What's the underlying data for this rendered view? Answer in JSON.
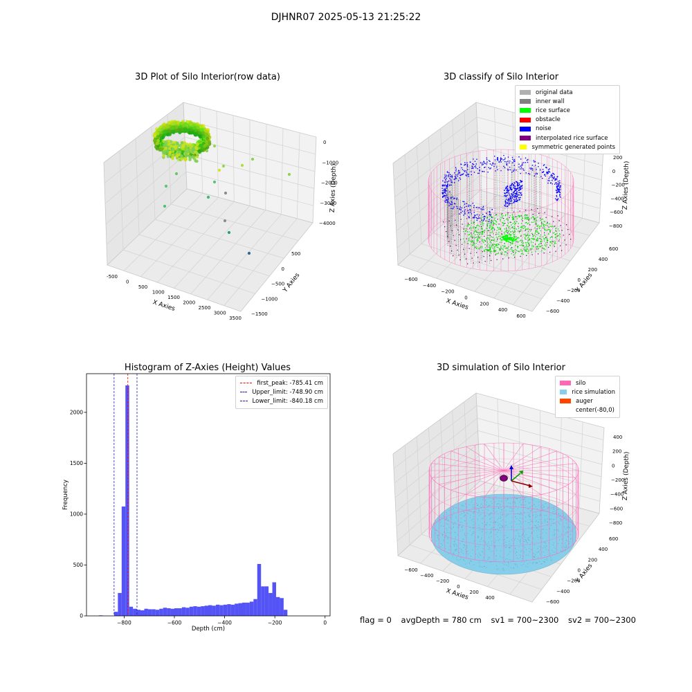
{
  "suptitle": "DJHNR07 2025-05-13 21:25:22",
  "status": {
    "flag": "flag = 0",
    "avg_depth": "avgDepth = 780 cm",
    "sv1": "sv1 = 700~2300",
    "sv2": "sv2 = 700~2300"
  },
  "colors": {
    "hist_bar": "#4b4bf5",
    "first_peak": "#ff0000",
    "limit_lines": "#1a1acc",
    "silo": "#ff69b4",
    "rice_simulation": "#87ceeb",
    "auger": "#ff4500"
  },
  "panels": {
    "raw": {
      "title": "3D Plot of Silo Interior(row data)",
      "xlabel": "X Axies",
      "ylabel": "Y Axies",
      "zlabel": "Z Axies (Depth)",
      "xticks": [
        "-500",
        "0",
        "500",
        "1000",
        "1500",
        "2000",
        "2500",
        "3000",
        "3500"
      ],
      "yticks": [
        "500",
        "0",
        "−500",
        "−1000",
        "−1500"
      ],
      "zticks": [
        "0",
        "−1000",
        "−2000",
        "−3000",
        "−4000"
      ]
    },
    "classify": {
      "title": "3D classify of Silo Interior",
      "xlabel": "X Axies",
      "ylabel": "Y Axies",
      "zlabel": "Z Axies (Depth)",
      "xticks": [
        "−600",
        "−400",
        "−200",
        "0",
        "200",
        "400",
        "600"
      ],
      "yticks": [
        "600",
        "400",
        "200",
        "0",
        "−200",
        "−400",
        "−600"
      ],
      "zticks": [
        "200",
        "0",
        "−200",
        "−400",
        "−600",
        "−800"
      ],
      "legend": [
        {
          "label": "original data",
          "color": "#b0b0b0"
        },
        {
          "label": "inner wall",
          "color": "#808080"
        },
        {
          "label": "rice surface",
          "color": "#00ff00"
        },
        {
          "label": "obstacle",
          "color": "#ff0000"
        },
        {
          "label": "noise",
          "color": "#0000ff"
        },
        {
          "label": "interpolated rice surface",
          "color": "#800080"
        },
        {
          "label": "symmetric generated points",
          "color": "#ffff00"
        }
      ]
    },
    "simulation": {
      "title": "3D simulation of Silo Interior",
      "xlabel": "X Axies",
      "ylabel": "Y Axies",
      "zlabel": "Z Axies (Depth)",
      "xticks": [
        "−600",
        "−400",
        "−200",
        "0",
        "200",
        "400"
      ],
      "yticks": [
        "600",
        "400",
        "200",
        "0",
        "−200",
        "−400",
        "−600"
      ],
      "zticks": [
        "400",
        "200",
        "0",
        "−200",
        "−400",
        "−600",
        "−800"
      ],
      "legend": [
        {
          "label": "silo",
          "color": "#ff69b4"
        },
        {
          "label": "rice simulation",
          "color": "#87ceeb"
        },
        {
          "label": "auger",
          "color": "#ff4500"
        },
        {
          "label": "center(-80,0)",
          "color": "#ffffff"
        }
      ]
    }
  },
  "chart_data": [
    {
      "type": "scatter",
      "title": "3D Plot of Silo Interior(row data)",
      "xlabel": "X Axies",
      "ylabel": "Y Axies",
      "zlabel": "Z Axies (Depth)",
      "xlim": [
        -600,
        3600
      ],
      "ylim": [
        -1500,
        700
      ],
      "zlim": [
        -4500,
        200
      ]
    },
    {
      "type": "scatter",
      "title": "3D classify of Silo Interior",
      "xlabel": "X Axies",
      "ylabel": "Y Axies",
      "zlabel": "Z Axies (Depth)",
      "xlim": [
        -700,
        700
      ],
      "ylim": [
        -700,
        700
      ],
      "zlim": [
        -900,
        300
      ],
      "series": [
        {
          "name": "original data"
        },
        {
          "name": "inner wall"
        },
        {
          "name": "rice surface"
        },
        {
          "name": "obstacle"
        },
        {
          "name": "noise"
        },
        {
          "name": "interpolated rice surface"
        },
        {
          "name": "symmetric generated points"
        }
      ]
    },
    {
      "type": "bar",
      "title": "Histogram of Z-Axies (Height) Values",
      "xlabel": "Depth (cm)",
      "ylabel": "Frequency",
      "xlim": [
        -950,
        20
      ],
      "ylim": [
        0,
        2380
      ],
      "xticks": [
        -800,
        -600,
        -400,
        -200,
        0
      ],
      "yticks": [
        0,
        500,
        1000,
        1500,
        2000
      ],
      "bin_width": 15,
      "bins": [
        {
          "x": -900,
          "count": 5
        },
        {
          "x": -840,
          "count": 40
        },
        {
          "x": -825,
          "count": 225
        },
        {
          "x": -810,
          "count": 1075
        },
        {
          "x": -795,
          "count": 2265
        },
        {
          "x": -780,
          "count": 90
        },
        {
          "x": -765,
          "count": 70
        },
        {
          "x": -750,
          "count": 60
        },
        {
          "x": -735,
          "count": 55
        },
        {
          "x": -720,
          "count": 70
        },
        {
          "x": -705,
          "count": 65
        },
        {
          "x": -690,
          "count": 65
        },
        {
          "x": -675,
          "count": 60
        },
        {
          "x": -660,
          "count": 70
        },
        {
          "x": -645,
          "count": 80
        },
        {
          "x": -630,
          "count": 75
        },
        {
          "x": -615,
          "count": 70
        },
        {
          "x": -600,
          "count": 75
        },
        {
          "x": -585,
          "count": 75
        },
        {
          "x": -570,
          "count": 85
        },
        {
          "x": -555,
          "count": 80
        },
        {
          "x": -540,
          "count": 90
        },
        {
          "x": -525,
          "count": 95
        },
        {
          "x": -510,
          "count": 90
        },
        {
          "x": -495,
          "count": 95
        },
        {
          "x": -480,
          "count": 100
        },
        {
          "x": -465,
          "count": 105
        },
        {
          "x": -450,
          "count": 100
        },
        {
          "x": -435,
          "count": 110
        },
        {
          "x": -420,
          "count": 105
        },
        {
          "x": -405,
          "count": 110
        },
        {
          "x": -390,
          "count": 115
        },
        {
          "x": -375,
          "count": 110
        },
        {
          "x": -360,
          "count": 120
        },
        {
          "x": -345,
          "count": 125
        },
        {
          "x": -330,
          "count": 130
        },
        {
          "x": -315,
          "count": 130
        },
        {
          "x": -300,
          "count": 140
        },
        {
          "x": -285,
          "count": 165
        },
        {
          "x": -270,
          "count": 510
        },
        {
          "x": -255,
          "count": 290
        },
        {
          "x": -240,
          "count": 290
        },
        {
          "x": -225,
          "count": 225
        },
        {
          "x": -210,
          "count": 330
        },
        {
          "x": -195,
          "count": 185
        },
        {
          "x": -180,
          "count": 175
        },
        {
          "x": -165,
          "count": 60
        }
      ],
      "lines": [
        {
          "name": "first_peak: -785.41 cm",
          "x": -785.41,
          "color": "#ff0000"
        },
        {
          "name": "Upper_limit: -748.90 cm",
          "x": -748.9,
          "color": "#1a1acc"
        },
        {
          "name": "Lower_limit: -840.18 cm",
          "x": -840.18,
          "color": "#1a1acc"
        }
      ]
    },
    {
      "type": "scatter",
      "title": "3D simulation of Silo Interior",
      "xlabel": "X Axies",
      "ylabel": "Y Axies",
      "zlabel": "Z Axies (Depth)",
      "xlim": [
        -700,
        500
      ],
      "ylim": [
        -700,
        700
      ],
      "zlim": [
        -900,
        500
      ],
      "series": [
        {
          "name": "silo"
        },
        {
          "name": "rice simulation"
        },
        {
          "name": "auger"
        },
        {
          "name": "center(-80,0)"
        }
      ]
    }
  ]
}
